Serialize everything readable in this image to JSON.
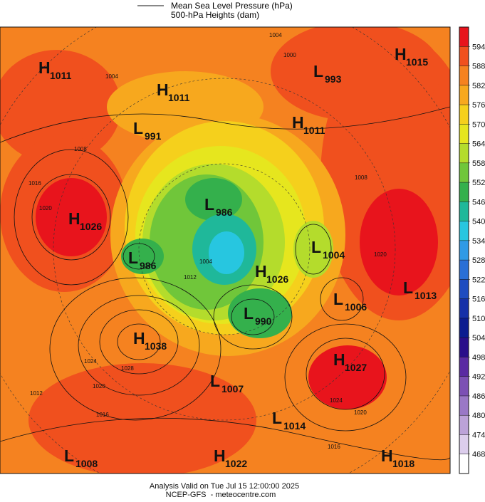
{
  "legend": {
    "line_label": "Mean Sea Level Pressure (hPa)",
    "fill_label": "500-hPa Heights (dam)"
  },
  "colorbar": {
    "ticks": [
      594,
      588,
      582,
      576,
      570,
      564,
      558,
      552,
      546,
      540,
      534,
      528,
      522,
      516,
      510,
      504,
      498,
      492,
      486,
      480,
      474,
      468
    ],
    "colors": [
      "#e8141c",
      "#f0501e",
      "#f58220",
      "#f7a81e",
      "#f5d01c",
      "#e6e61e",
      "#b4dc2c",
      "#70c63a",
      "#34b04c",
      "#1fb89a",
      "#27c6e0",
      "#2f9ae6",
      "#2a6fd6",
      "#1e4cc0",
      "#1630a8",
      "#0c1c90",
      "#2a0e8a",
      "#5a2aa2",
      "#7c50b4",
      "#9a78c6",
      "#bca2d8",
      "#dccdec",
      "#ffffff"
    ]
  },
  "systems": [
    {
      "kind": "H",
      "pressure": 1011
    },
    {
      "kind": "L",
      "pressure": 993
    },
    {
      "kind": "H",
      "pressure": 1015
    },
    {
      "kind": "H",
      "pressure": 1011
    },
    {
      "kind": "L",
      "pressure": 991
    },
    {
      "kind": "H",
      "pressure": 1011
    },
    {
      "kind": "H",
      "pressure": 1026
    },
    {
      "kind": "L",
      "pressure": 986
    },
    {
      "kind": "L",
      "pressure": 986
    },
    {
      "kind": "L",
      "pressure": 1004
    },
    {
      "kind": "H",
      "pressure": 1026
    },
    {
      "kind": "L",
      "pressure": 1013
    },
    {
      "kind": "L",
      "pressure": 1006
    },
    {
      "kind": "L",
      "pressure": 990
    },
    {
      "kind": "H",
      "pressure": 1038
    },
    {
      "kind": "H",
      "pressure": 1027
    },
    {
      "kind": "L",
      "pressure": 1007
    },
    {
      "kind": "L",
      "pressure": 1014
    },
    {
      "kind": "L",
      "pressure": 1008
    },
    {
      "kind": "H",
      "pressure": 1022
    },
    {
      "kind": "H",
      "pressure": 1018
    }
  ],
  "contour_labels": [
    1004,
    1000,
    1004,
    1008,
    1016,
    1020,
    1004,
    1012,
    1008,
    1020,
    1024,
    1028,
    1020,
    1016,
    1012,
    1024,
    1020,
    1016
  ],
  "footer": {
    "valid": "Analysis Valid on Tue Jul 15 12:00:00 2025",
    "source": "NCEP-GFS  - meteocentre.com"
  }
}
